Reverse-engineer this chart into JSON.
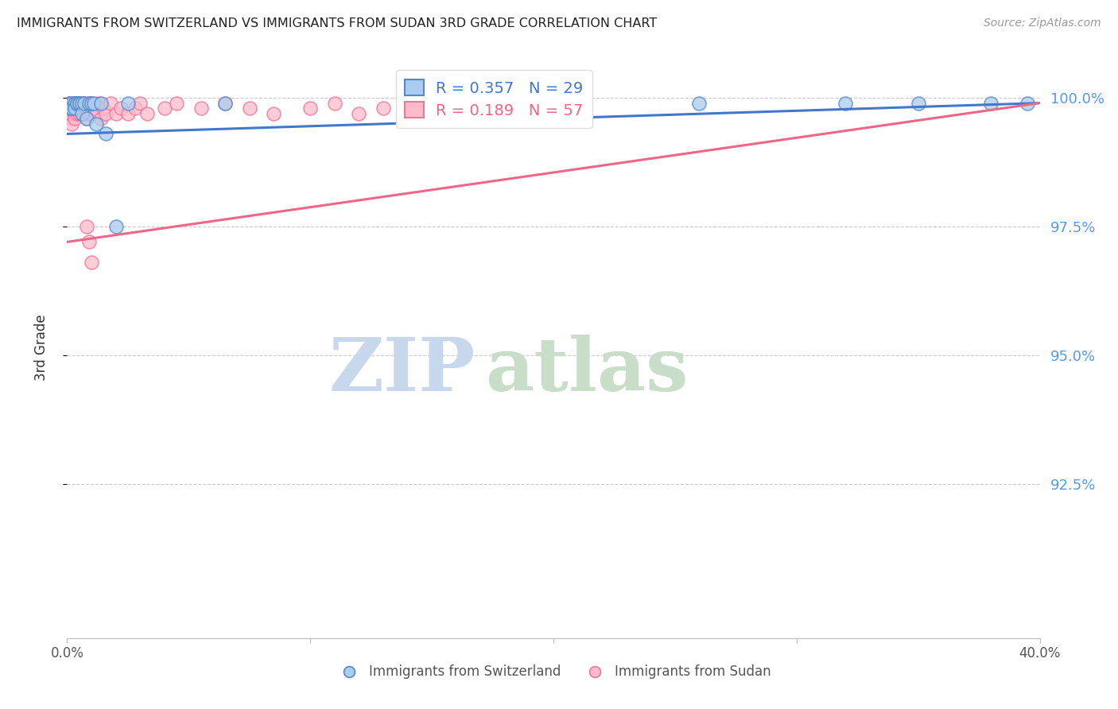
{
  "title": "IMMIGRANTS FROM SWITZERLAND VS IMMIGRANTS FROM SUDAN 3RD GRADE CORRELATION CHART",
  "source": "Source: ZipAtlas.com",
  "ylabel": "3rd Grade",
  "ytick_labels": [
    "100.0%",
    "97.5%",
    "95.0%",
    "92.5%"
  ],
  "ytick_values": [
    1.0,
    0.975,
    0.95,
    0.925
  ],
  "xlim": [
    0.0,
    0.4
  ],
  "ylim": [
    0.895,
    1.008
  ],
  "legend_blue_r": "0.357",
  "legend_blue_n": "29",
  "legend_pink_r": "0.189",
  "legend_pink_n": "57",
  "watermark_zip": "ZIP",
  "watermark_atlas": "atlas",
  "switzerland_x": [
    0.001,
    0.001,
    0.002,
    0.002,
    0.003,
    0.003,
    0.003,
    0.004,
    0.004,
    0.005,
    0.005,
    0.006,
    0.006,
    0.007,
    0.008,
    0.009,
    0.01,
    0.011,
    0.012,
    0.014,
    0.016,
    0.02,
    0.025,
    0.065,
    0.26,
    0.32,
    0.35,
    0.38,
    0.395
  ],
  "switzerland_y": [
    0.999,
    0.998,
    0.999,
    0.998,
    0.999,
    0.999,
    0.998,
    0.999,
    0.999,
    0.999,
    0.999,
    0.999,
    0.997,
    0.999,
    0.996,
    0.999,
    0.999,
    0.999,
    0.995,
    0.999,
    0.993,
    0.975,
    0.999,
    0.999,
    0.999,
    0.999,
    0.999,
    0.999,
    0.999
  ],
  "sudan_x": [
    0.001,
    0.001,
    0.001,
    0.002,
    0.002,
    0.002,
    0.002,
    0.002,
    0.003,
    0.003,
    0.003,
    0.003,
    0.004,
    0.004,
    0.004,
    0.005,
    0.005,
    0.005,
    0.006,
    0.006,
    0.006,
    0.007,
    0.007,
    0.008,
    0.008,
    0.009,
    0.009,
    0.01,
    0.01,
    0.011,
    0.012,
    0.013,
    0.014,
    0.015,
    0.016,
    0.018,
    0.02,
    0.022,
    0.025,
    0.028,
    0.03,
    0.033,
    0.04,
    0.045,
    0.055,
    0.065,
    0.075,
    0.085,
    0.1,
    0.11,
    0.12,
    0.13,
    0.14,
    0.15,
    0.008,
    0.009,
    0.01
  ],
  "sudan_y": [
    0.999,
    0.998,
    0.997,
    0.999,
    0.998,
    0.997,
    0.996,
    0.995,
    0.999,
    0.998,
    0.997,
    0.996,
    0.999,
    0.998,
    0.997,
    0.999,
    0.998,
    0.997,
    0.999,
    0.998,
    0.997,
    0.999,
    0.997,
    0.998,
    0.996,
    0.999,
    0.997,
    0.999,
    0.997,
    0.998,
    0.997,
    0.999,
    0.996,
    0.998,
    0.997,
    0.999,
    0.997,
    0.998,
    0.997,
    0.998,
    0.999,
    0.997,
    0.998,
    0.999,
    0.998,
    0.999,
    0.998,
    0.997,
    0.998,
    0.999,
    0.997,
    0.998,
    0.999,
    0.997,
    0.975,
    0.972,
    0.968
  ],
  "blue_fill": "#AACCEE",
  "blue_edge": "#5588CC",
  "pink_fill": "#FFBBCC",
  "pink_edge": "#EE7799",
  "blue_line": "#4477CC",
  "pink_line": "#EE6688",
  "title_color": "#222222",
  "right_tick_color": "#5599EE",
  "grid_color": "#CCCCCC",
  "watermark_zip_color": "#C8D8EC",
  "watermark_atlas_color": "#C8DEC8"
}
